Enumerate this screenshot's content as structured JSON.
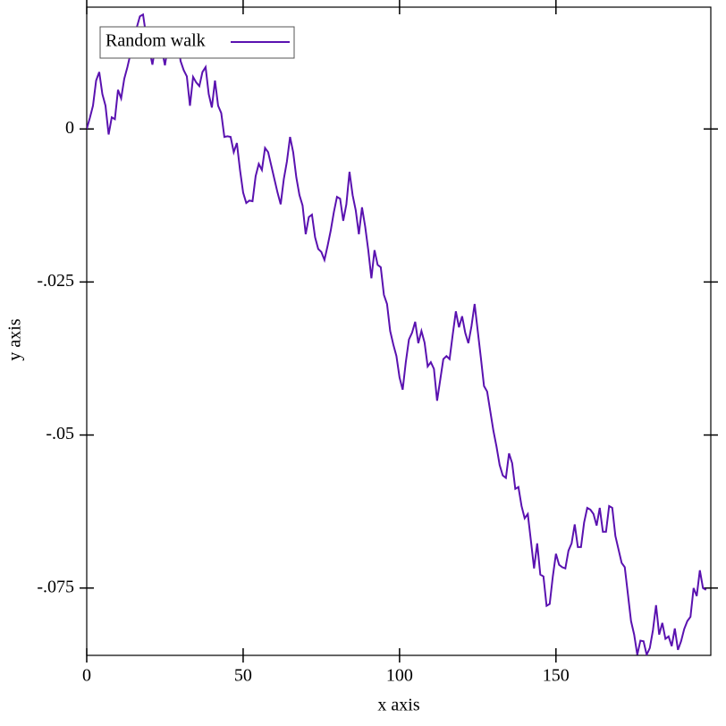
{
  "chart_data": {
    "type": "line",
    "xlabel": "x axis",
    "ylabel": "y axis",
    "x": [
      0,
      1,
      2,
      3,
      4,
      5,
      6,
      7,
      8,
      9,
      10,
      11,
      12,
      13,
      14,
      15,
      16,
      17,
      18,
      19,
      20,
      21,
      22,
      23,
      24,
      25,
      26,
      27,
      28,
      29,
      30,
      31,
      32,
      33,
      34,
      35,
      36,
      37,
      38,
      39,
      40,
      41,
      42,
      43,
      44,
      45,
      46,
      47,
      48,
      49,
      50,
      51,
      52,
      53,
      54,
      55,
      56,
      57,
      58,
      59,
      60,
      61,
      62,
      63,
      64,
      65,
      66,
      67,
      68,
      69,
      70,
      71,
      72,
      73,
      74,
      75,
      76,
      77,
      78,
      79,
      80,
      81,
      82,
      83,
      84,
      85,
      86,
      87,
      88,
      89,
      90,
      91,
      92,
      93,
      94,
      95,
      96,
      97,
      98,
      99,
      100,
      101,
      102,
      103,
      104,
      105,
      106,
      107,
      108,
      109,
      110,
      111,
      112,
      113,
      114,
      115,
      116,
      117,
      118,
      119,
      120,
      121,
      122,
      123,
      124,
      125,
      126,
      127,
      128,
      129,
      130,
      131,
      132,
      133,
      134,
      135,
      136,
      137,
      138,
      139,
      140,
      141,
      142,
      143,
      144,
      145,
      146,
      147,
      148,
      149,
      150,
      151,
      152,
      153,
      154,
      155,
      156,
      157,
      158,
      159,
      160,
      161,
      162,
      163,
      164,
      165,
      166,
      167,
      168,
      169,
      170,
      171,
      172,
      173,
      174,
      175,
      176,
      177,
      178,
      179,
      180,
      181,
      182,
      183,
      184,
      185,
      186,
      187,
      188,
      189,
      190,
      191,
      192,
      193,
      194,
      195,
      196,
      197,
      198
    ],
    "series": [
      {
        "name": "Random walk",
        "color": "#5a12b0",
        "values": [
          0,
          0.0018,
          0.0038,
          0.0079,
          0.0093,
          0.0057,
          0.0038,
          -0.0009,
          0.0019,
          0.0016,
          0.0064,
          0.005,
          0.0082,
          0.0101,
          0.0123,
          0.0144,
          0.0166,
          0.0184,
          0.0187,
          0.0152,
          0.013,
          0.0105,
          0.0137,
          0.0152,
          0.013,
          0.0104,
          0.0137,
          0.013,
          0.0125,
          0.0152,
          0.0111,
          0.0096,
          0.0086,
          0.0038,
          0.0085,
          0.0076,
          0.007,
          0.0093,
          0.0101,
          0.0057,
          0.0035,
          0.0079,
          0.0038,
          0.0026,
          -0.0013,
          -0.0012,
          -0.0013,
          -0.0038,
          -0.0023,
          -0.0067,
          -0.0104,
          -0.0121,
          -0.0117,
          -0.0118,
          -0.0077,
          -0.0057,
          -0.0067,
          -0.0031,
          -0.0038,
          -0.006,
          -0.0082,
          -0.0104,
          -0.0123,
          -0.0082,
          -0.0053,
          -0.0013,
          -0.0038,
          -0.0079,
          -0.0108,
          -0.0125,
          -0.0172,
          -0.0144,
          -0.014,
          -0.0177,
          -0.0196,
          -0.0201,
          -0.0214,
          -0.0191,
          -0.0166,
          -0.0136,
          -0.0111,
          -0.0114,
          -0.015,
          -0.0123,
          -0.007,
          -0.0108,
          -0.0133,
          -0.0172,
          -0.0128,
          -0.0159,
          -0.0198,
          -0.0244,
          -0.0198,
          -0.0222,
          -0.0226,
          -0.0271,
          -0.0286,
          -0.033,
          -0.0352,
          -0.0371,
          -0.0406,
          -0.0426,
          -0.0381,
          -0.0344,
          -0.0333,
          -0.0315,
          -0.035,
          -0.033,
          -0.0349,
          -0.0388,
          -0.0381,
          -0.0392,
          -0.0444,
          -0.041,
          -0.0376,
          -0.0371,
          -0.0376,
          -0.0336,
          -0.0298,
          -0.0324,
          -0.0306,
          -0.0333,
          -0.035,
          -0.0322,
          -0.0286,
          -0.033,
          -0.0374,
          -0.042,
          -0.0429,
          -0.0461,
          -0.0493,
          -0.0519,
          -0.0549,
          -0.0566,
          -0.057,
          -0.053,
          -0.0546,
          -0.0588,
          -0.0585,
          -0.0616,
          -0.0636,
          -0.0629,
          -0.0673,
          -0.0718,
          -0.0677,
          -0.0728,
          -0.0731,
          -0.0779,
          -0.0776,
          -0.0731,
          -0.0694,
          -0.0712,
          -0.0716,
          -0.0718,
          -0.0689,
          -0.0677,
          -0.0646,
          -0.0683,
          -0.0683,
          -0.0643,
          -0.0619,
          -0.0622,
          -0.0629,
          -0.0648,
          -0.0619,
          -0.0658,
          -0.0658,
          -0.0616,
          -0.0619,
          -0.0665,
          -0.0687,
          -0.0709,
          -0.0716,
          -0.076,
          -0.0804,
          -0.0826,
          -0.0859,
          -0.0836,
          -0.0837,
          -0.0859,
          -0.0848,
          -0.0819,
          -0.0778,
          -0.0826,
          -0.0807,
          -0.0833,
          -0.0829,
          -0.0845,
          -0.0816,
          -0.0851,
          -0.0837,
          -0.0817,
          -0.0804,
          -0.0797,
          -0.075,
          -0.0763,
          -0.0721,
          -0.075,
          -0.0753
        ]
      }
    ],
    "xlim": [
      0,
      199.5
    ],
    "ylim": [
      -0.086,
      0.0199
    ],
    "xticks": [
      0,
      50,
      100,
      150
    ],
    "yticks": [
      0,
      {
        "value": -0.025,
        "label": "-.025"
      },
      {
        "value": -0.05,
        "label": "-.05"
      },
      {
        "value": -0.075,
        "label": "-.075"
      }
    ],
    "legend": "top-left"
  }
}
